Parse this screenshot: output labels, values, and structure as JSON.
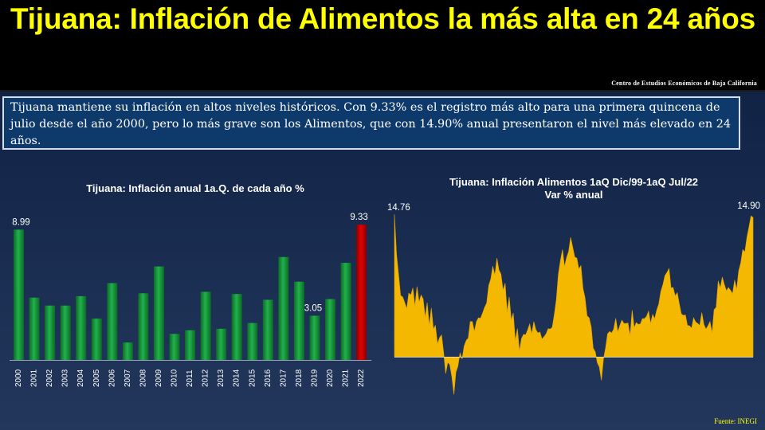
{
  "header": {
    "title": "Tijuana: Inflación de Alimentos la más alta en 24 años",
    "organization": "Centro de Estudios Económicos de Baja California"
  },
  "summary": "Tijuana mantiene su inflación en altos niveles históricos. Con 9.33% es el registro más alto para una primera quincena de julio desde el año 2000, pero lo más grave son los Alimentos, que con 14.90% anual presentaron el nivel más elevado en 24 años.",
  "source": "Fuente: INEGI",
  "colors": {
    "title": "#ffff00",
    "bar": "#22b14c",
    "bar_highlight": "#e00000",
    "line_fill": "#f5b800"
  },
  "chart_data": [
    {
      "type": "bar",
      "title": "Tijuana: Inflación anual 1a.Q. de cada año %",
      "categories": [
        "2000",
        "2001",
        "2002",
        "2003",
        "2004",
        "2005",
        "2006",
        "2007",
        "2008",
        "2009",
        "2010",
        "2011",
        "2012",
        "2013",
        "2014",
        "2015",
        "2016",
        "2017",
        "2018",
        "2019",
        "2020",
        "2021",
        "2022"
      ],
      "values": [
        8.99,
        4.3,
        3.75,
        3.75,
        4.4,
        2.85,
        5.3,
        1.2,
        4.6,
        6.45,
        1.8,
        2.05,
        4.7,
        2.15,
        4.55,
        2.55,
        4.15,
        7.1,
        5.4,
        3.05,
        4.2,
        6.7,
        9.33
      ],
      "data_labels": {
        "0": "8.99",
        "19": "3.05",
        "22": "9.33"
      },
      "highlight_index": 22,
      "ylim": [
        0,
        10
      ],
      "xlabel": "",
      "ylabel": ""
    },
    {
      "type": "area",
      "title": "Tijuana: Inflación Alimentos 1aQ Dic/99-1aQ Jul/22",
      "subtitle": "Var % anual",
      "x_start": "Dic/99",
      "x_end": "Jul/22",
      "annotations": {
        "first": "14.76",
        "last": "14.90"
      },
      "ylim": [
        -4,
        15
      ],
      "values": [
        14.76,
        11.0,
        8.6,
        6.8,
        6.2,
        5.9,
        4.8,
        6.9,
        6.4,
        7.6,
        5.2,
        7.6,
        5.5,
        6.7,
        6.0,
        4.5,
        5.6,
        3.5,
        4.9,
        3.1,
        3.2,
        1.7,
        1.9,
        2.5,
        0.2,
        -1.6,
        -0.7,
        -0.5,
        -2.2,
        -3.8,
        -1.9,
        -0.8,
        0.3,
        0.1,
        1.0,
        1.9,
        1.7,
        3.9,
        3.6,
        3.0,
        3.6,
        4.3,
        3.8,
        4.8,
        5.1,
        6.0,
        7.4,
        8.4,
        9.3,
        8.8,
        10.3,
        9.5,
        8.6,
        7.2,
        7.5,
        4.9,
        6.2,
        4.2,
        4.5,
        1.9,
        2.7,
        0.8,
        1.8,
        2.7,
        2.2,
        3.0,
        3.2,
        2.6,
        3.6,
        3.2,
        2.4,
        2.8,
        1.6,
        2.3,
        2.3,
        3.3,
        2.8,
        3.3,
        4.2,
        6.2,
        8.6,
        10.5,
        11.2,
        9.7,
        10.2,
        11.3,
        12.5,
        11.9,
        10.4,
        10.6,
        9.0,
        9.8,
        7.1,
        6.6,
        4.2,
        4.3,
        2.9,
        1.1,
        0.4,
        -0.3,
        -1.2,
        -2.3,
        -0.5,
        1.1,
        2.3,
        3.0,
        2.4,
        3.1,
        3.8,
        2.8,
        3.2,
        4.2,
        3.4,
        3.7,
        3.3,
        2.4,
        4.8,
        3.4,
        3.5,
        3.6,
        3.2,
        4.2,
        3.9,
        4.6,
        4.7,
        3.7,
        4.2,
        4.2,
        4.8,
        5.9,
        6.8,
        7.8,
        8.3,
        9.1,
        9.2,
        7.6,
        7.2,
        6.6,
        6.5,
        5.8,
        4.4,
        4.7,
        4.3,
        3.5,
        3.0,
        3.2,
        4.0,
        4.0,
        3.4,
        3.5,
        4.4,
        3.6,
        2.8,
        3.6,
        3.6,
        2.7,
        4.7,
        5.4,
        7.9,
        7.6,
        8.3,
        7.8,
        6.7,
        7.5,
        6.9,
        7.0,
        8.0,
        7.3,
        8.8,
        10.1,
        11.2,
        11.4,
        12.5,
        13.9,
        14.6,
        14.9
      ]
    }
  ]
}
